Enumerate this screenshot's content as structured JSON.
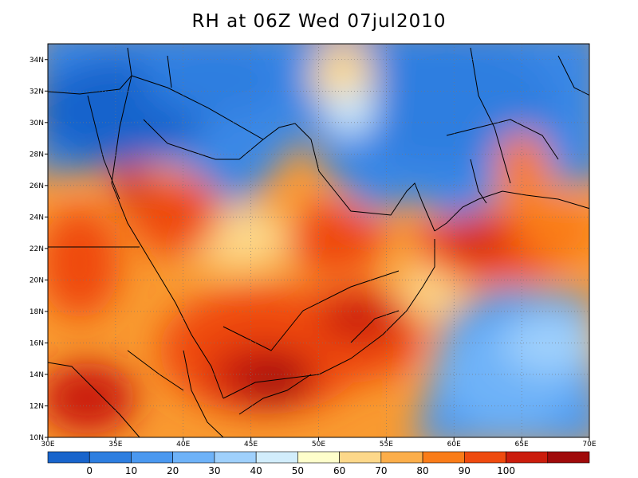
{
  "title": "RH at 06Z Wed 07jul2010",
  "map": {
    "projection": "lat-lon",
    "lon_range": [
      30,
      70
    ],
    "lat_range": [
      10,
      35
    ],
    "x_ticks": [
      "30E",
      "35E",
      "40E",
      "45E",
      "50E",
      "55E",
      "60E",
      "65E",
      "70E"
    ],
    "x_tick_values": [
      30,
      35,
      40,
      45,
      50,
      55,
      60,
      65,
      70
    ],
    "y_ticks": [
      "10N",
      "12N",
      "14N",
      "16N",
      "18N",
      "20N",
      "22N",
      "24N",
      "26N",
      "28N",
      "30N",
      "32N",
      "34N"
    ],
    "y_tick_values": [
      10,
      12,
      14,
      16,
      18,
      20,
      22,
      24,
      26,
      28,
      30,
      32,
      34
    ],
    "grid": "dotted",
    "variable": "relative humidity (%)",
    "humid_cores": [
      {
        "lon": 47,
        "lat": 15,
        "rh": 100
      },
      {
        "lon": 52,
        "lat": 16,
        "rh": 98
      },
      {
        "lon": 41,
        "lat": 24,
        "rh": 95
      },
      {
        "lon": 36,
        "lat": 26,
        "rh": 95
      },
      {
        "lon": 31,
        "lat": 20,
        "rh": 92
      },
      {
        "lon": 33,
        "lat": 12,
        "rh": 98
      },
      {
        "lon": 63,
        "lat": 22,
        "rh": 95
      },
      {
        "lon": 68,
        "lat": 22,
        "rh": 90
      },
      {
        "lon": 65,
        "lat": 27,
        "rh": 85
      },
      {
        "lon": 51,
        "lat": 23,
        "rh": 88
      }
    ],
    "dry_zones": [
      {
        "lon": 36,
        "lat": 31,
        "rh": 5
      },
      {
        "lon": 58,
        "lat": 30,
        "rh": 10
      },
      {
        "lon": 64,
        "lat": 15,
        "rh": 15
      },
      {
        "lon": 45,
        "lat": 33,
        "rh": 10
      }
    ]
  },
  "colorbar": {
    "labels": [
      "0",
      "10",
      "20",
      "30",
      "40",
      "50",
      "60",
      "70",
      "80",
      "90",
      "100"
    ],
    "colors": [
      "#1864cc",
      "#2d7ee0",
      "#4a98f0",
      "#6eb2f8",
      "#9fd0fc",
      "#d2edfc",
      "#fefecb",
      "#fdd88a",
      "#fcae4a",
      "#fa7c18",
      "#ef4a0e",
      "#cb1c0c",
      "#a00a0a"
    ]
  }
}
